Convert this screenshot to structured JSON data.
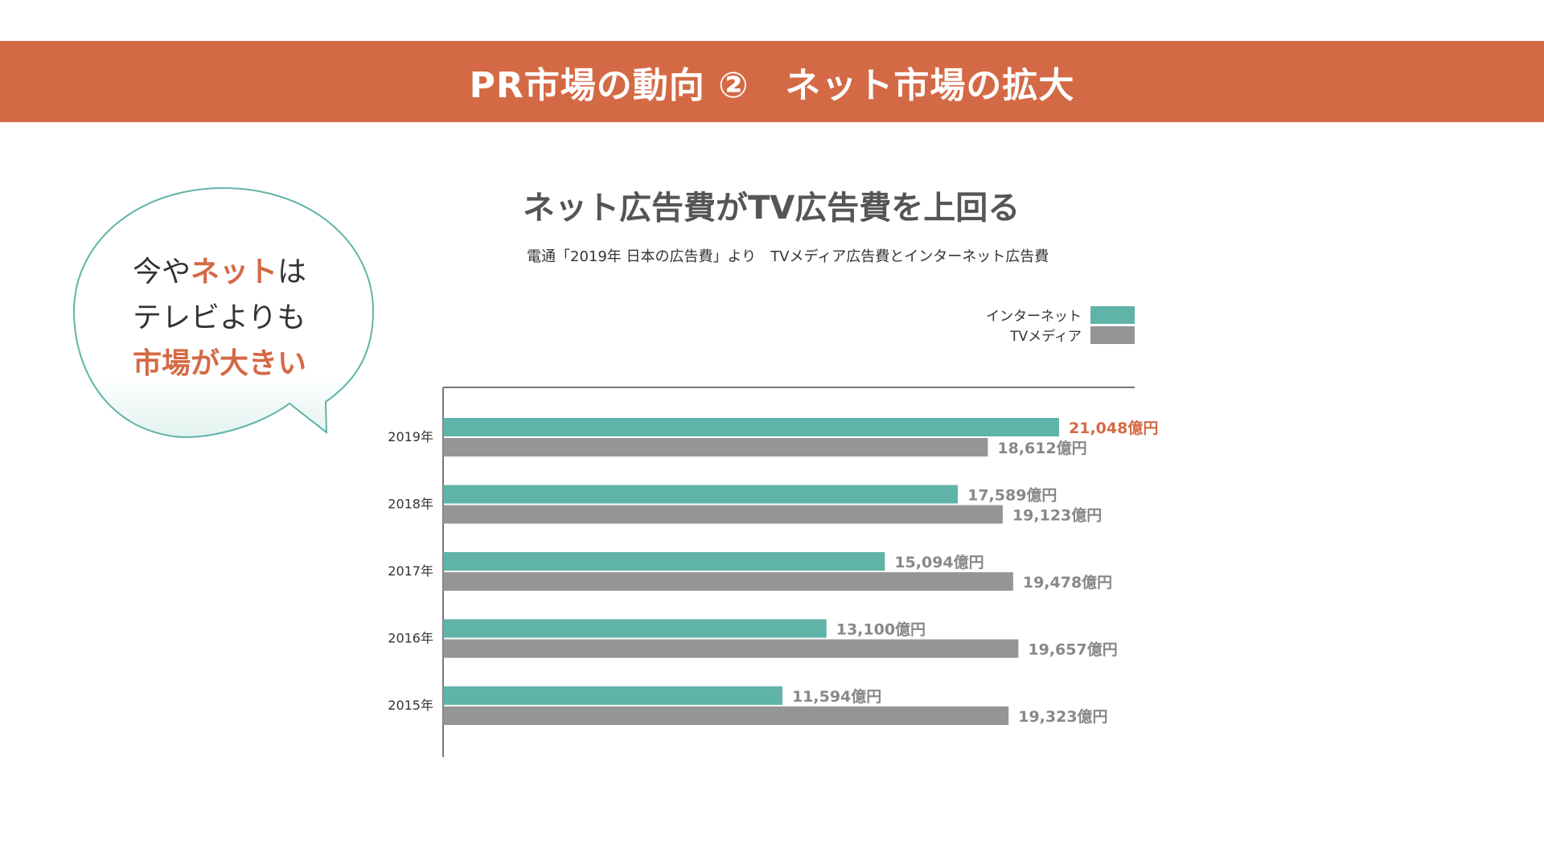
{
  "header": {
    "title": "PR市場の動向 ②　ネット市場の拡大"
  },
  "bubble": {
    "line1_pre": "今や",
    "line1_accent": "ネット",
    "line1_post": "は",
    "line2": "テレビよりも",
    "line3_accent": "市場が大きい"
  },
  "colors": {
    "header_bg": "#d46a45",
    "accent": "#d46a45",
    "internet": "#5fb3a8",
    "tv": "#959595",
    "axis": "#777777",
    "label": "#888888"
  },
  "chart_data": {
    "type": "bar",
    "orientation": "horizontal",
    "title": "ネット広告費がTV広告費を上回る",
    "subtitle": "電通「2019年 日本の広告費」より　TVメディア広告費とインターネット広告費",
    "unit_suffix": "億円",
    "categories": [
      "2019年",
      "2018年",
      "2017年",
      "2016年",
      "2015年"
    ],
    "series": [
      {
        "name": "インターネット",
        "color": "#5fb3a8",
        "values": [
          21048,
          17589,
          15094,
          13100,
          11594
        ],
        "labels": [
          "21,048億円",
          "17,589億円",
          "15,094億円",
          "13,100億円",
          "11,594億円"
        ]
      },
      {
        "name": "TVメディア",
        "color": "#959595",
        "values": [
          18612,
          19123,
          19478,
          19657,
          19323
        ],
        "labels": [
          "18,612億円",
          "19,123億円",
          "19,478億円",
          "19,657億円",
          "19,323億円"
        ]
      }
    ],
    "highlight_label": "21,048億円",
    "xlim": [
      0,
      24000
    ],
    "legend_position": "top-right",
    "grid": false
  }
}
